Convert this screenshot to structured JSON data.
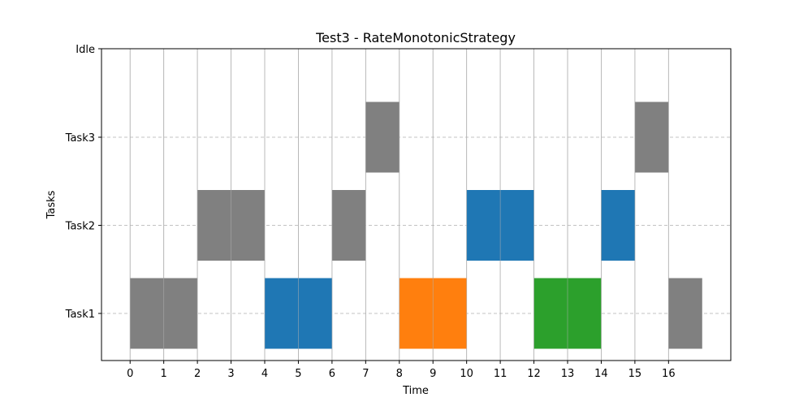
{
  "chart_data": {
    "type": "gantt",
    "title": "Test3 - RateMonotonicStrategy",
    "xlabel": "Time",
    "ylabel": "Tasks",
    "xlim": [
      -0.85,
      17.85
    ],
    "x_ticks": [
      0,
      1,
      2,
      3,
      4,
      5,
      6,
      7,
      8,
      9,
      10,
      11,
      12,
      13,
      14,
      15,
      16
    ],
    "y_categories": [
      "Task1",
      "Task2",
      "Task3",
      "Idle"
    ],
    "grid": {
      "x": "solid",
      "y": "dashed"
    },
    "colors": {
      "gray": "#808080",
      "blue": "#1f77b4",
      "orange": "#ff7f0e",
      "green": "#2ca02c"
    },
    "segments": [
      {
        "task": "Task1",
        "start": 0,
        "end": 1,
        "color": "gray"
      },
      {
        "task": "Task1",
        "start": 1,
        "end": 2,
        "color": "gray"
      },
      {
        "task": "Task2",
        "start": 2,
        "end": 3,
        "color": "gray"
      },
      {
        "task": "Task2",
        "start": 3,
        "end": 4,
        "color": "gray"
      },
      {
        "task": "Task1",
        "start": 4,
        "end": 5,
        "color": "blue"
      },
      {
        "task": "Task1",
        "start": 5,
        "end": 6,
        "color": "blue"
      },
      {
        "task": "Task2",
        "start": 6,
        "end": 7,
        "color": "gray"
      },
      {
        "task": "Task3",
        "start": 7,
        "end": 8,
        "color": "gray"
      },
      {
        "task": "Task1",
        "start": 8,
        "end": 9,
        "color": "orange"
      },
      {
        "task": "Task1",
        "start": 9,
        "end": 10,
        "color": "orange"
      },
      {
        "task": "Task2",
        "start": 10,
        "end": 11,
        "color": "blue"
      },
      {
        "task": "Task2",
        "start": 11,
        "end": 12,
        "color": "blue"
      },
      {
        "task": "Task1",
        "start": 12,
        "end": 13,
        "color": "green"
      },
      {
        "task": "Task1",
        "start": 13,
        "end": 14,
        "color": "green"
      },
      {
        "task": "Task2",
        "start": 14,
        "end": 15,
        "color": "blue"
      },
      {
        "task": "Task3",
        "start": 15,
        "end": 16,
        "color": "gray"
      },
      {
        "task": "Task1",
        "start": 16,
        "end": 17,
        "color": "gray"
      }
    ]
  }
}
